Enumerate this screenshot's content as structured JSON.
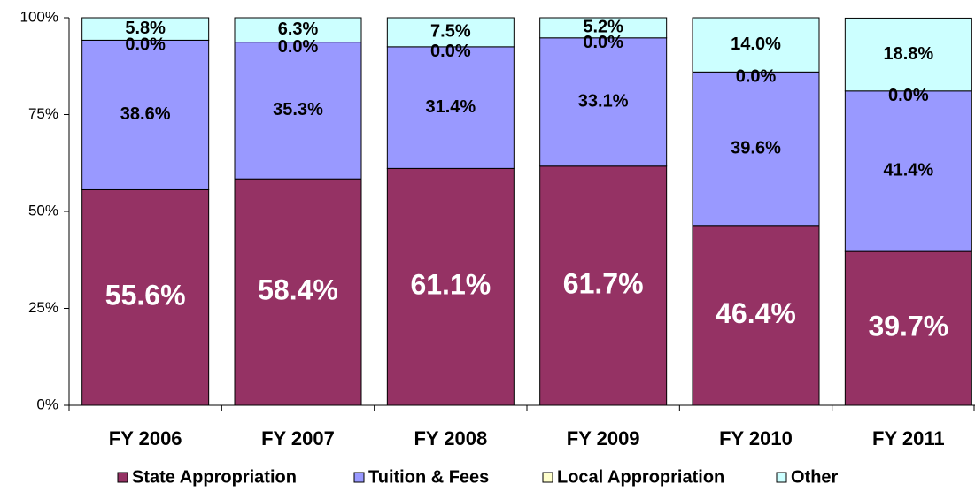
{
  "chart_data": {
    "type": "stacked_bar",
    "categories": [
      "FY 2006",
      "FY 2007",
      "FY 2008",
      "FY 2009",
      "FY 2010",
      "FY 2011"
    ],
    "series": [
      {
        "name": "State Appropriation",
        "color": "#953264",
        "values": [
          55.6,
          58.4,
          61.1,
          61.7,
          46.4,
          39.7
        ],
        "value_labels": [
          "55.6%",
          "58.4%",
          "61.1%",
          "61.7%",
          "46.4%",
          "39.7%"
        ]
      },
      {
        "name": "Tuition & Fees",
        "color": "#9999ff",
        "values": [
          38.6,
          35.3,
          31.4,
          33.1,
          39.6,
          41.4
        ],
        "value_labels": [
          "38.6%",
          "35.3%",
          "31.4%",
          "33.1%",
          "39.6%",
          "41.4%"
        ]
      },
      {
        "name": "Local Appropriation",
        "color": "#ffffcc",
        "values": [
          0,
          0,
          0,
          0,
          0,
          0
        ],
        "value_labels": [
          "0.0%",
          "0.0%",
          "0.0%",
          "0.0%",
          "0.0%",
          "0.0%"
        ]
      },
      {
        "name": "Other",
        "color": "#ccffff",
        "values": [
          5.8,
          6.3,
          7.5,
          5.2,
          14,
          18.8
        ],
        "value_labels": [
          "5.8%",
          "6.3%",
          "7.5%",
          "5.2%",
          "14.0%",
          "18.8%"
        ]
      }
    ],
    "ylim": [
      0,
      100
    ],
    "yticks": [
      {
        "value": 0,
        "label": "0%"
      },
      {
        "value": 25,
        "label": "25%"
      },
      {
        "value": 50,
        "label": "50%"
      },
      {
        "value": 75,
        "label": "75%"
      },
      {
        "value": 100,
        "label": "100%"
      }
    ],
    "grid": false,
    "legend": "bottom"
  }
}
